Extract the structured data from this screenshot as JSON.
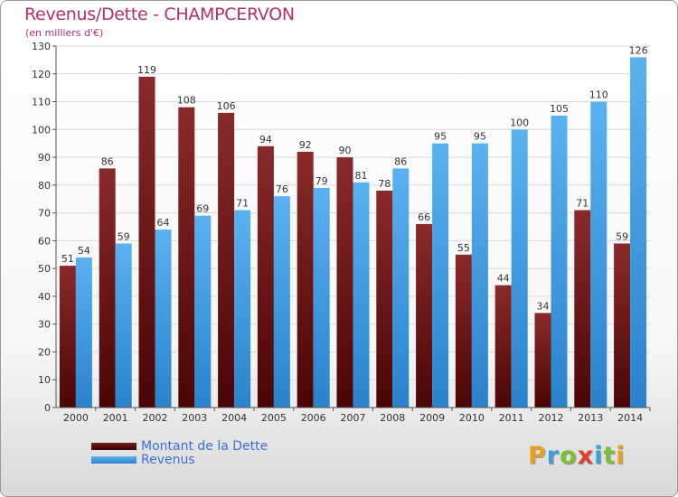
{
  "chart_data": {
    "type": "bar",
    "title": "Revenus/Dette - CHAMPCERVON",
    "subtitle": "(en milliers d'€)",
    "categories": [
      "2000",
      "2001",
      "2002",
      "2003",
      "2004",
      "2005",
      "2006",
      "2007",
      "2008",
      "2009",
      "2010",
      "2011",
      "2012",
      "2013",
      "2014"
    ],
    "series": [
      {
        "name": "Montant de la Dette",
        "color": "#7a1a1a",
        "values": [
          51,
          86,
          119,
          108,
          106,
          94,
          92,
          90,
          78,
          66,
          55,
          44,
          34,
          71,
          59
        ]
      },
      {
        "name": "Revenus",
        "color": "#4aa3e8",
        "values": [
          54,
          59,
          64,
          69,
          71,
          76,
          79,
          81,
          86,
          95,
          95,
          100,
          105,
          110,
          126
        ]
      }
    ],
    "ylim": [
      0,
      130
    ],
    "yticks": [
      0,
      10,
      20,
      30,
      40,
      50,
      60,
      70,
      80,
      90,
      100,
      110,
      120,
      130
    ],
    "grid": true,
    "legend_position": "bottom-left"
  },
  "brand": {
    "letters": [
      "P",
      "r",
      "o",
      "x",
      "i",
      "t",
      "i"
    ],
    "colors": [
      "#e8a020",
      "#3aa0e0",
      "#7ac030",
      "#e04030",
      "#3aa0e0",
      "#7ac030",
      "#e8a020"
    ]
  }
}
